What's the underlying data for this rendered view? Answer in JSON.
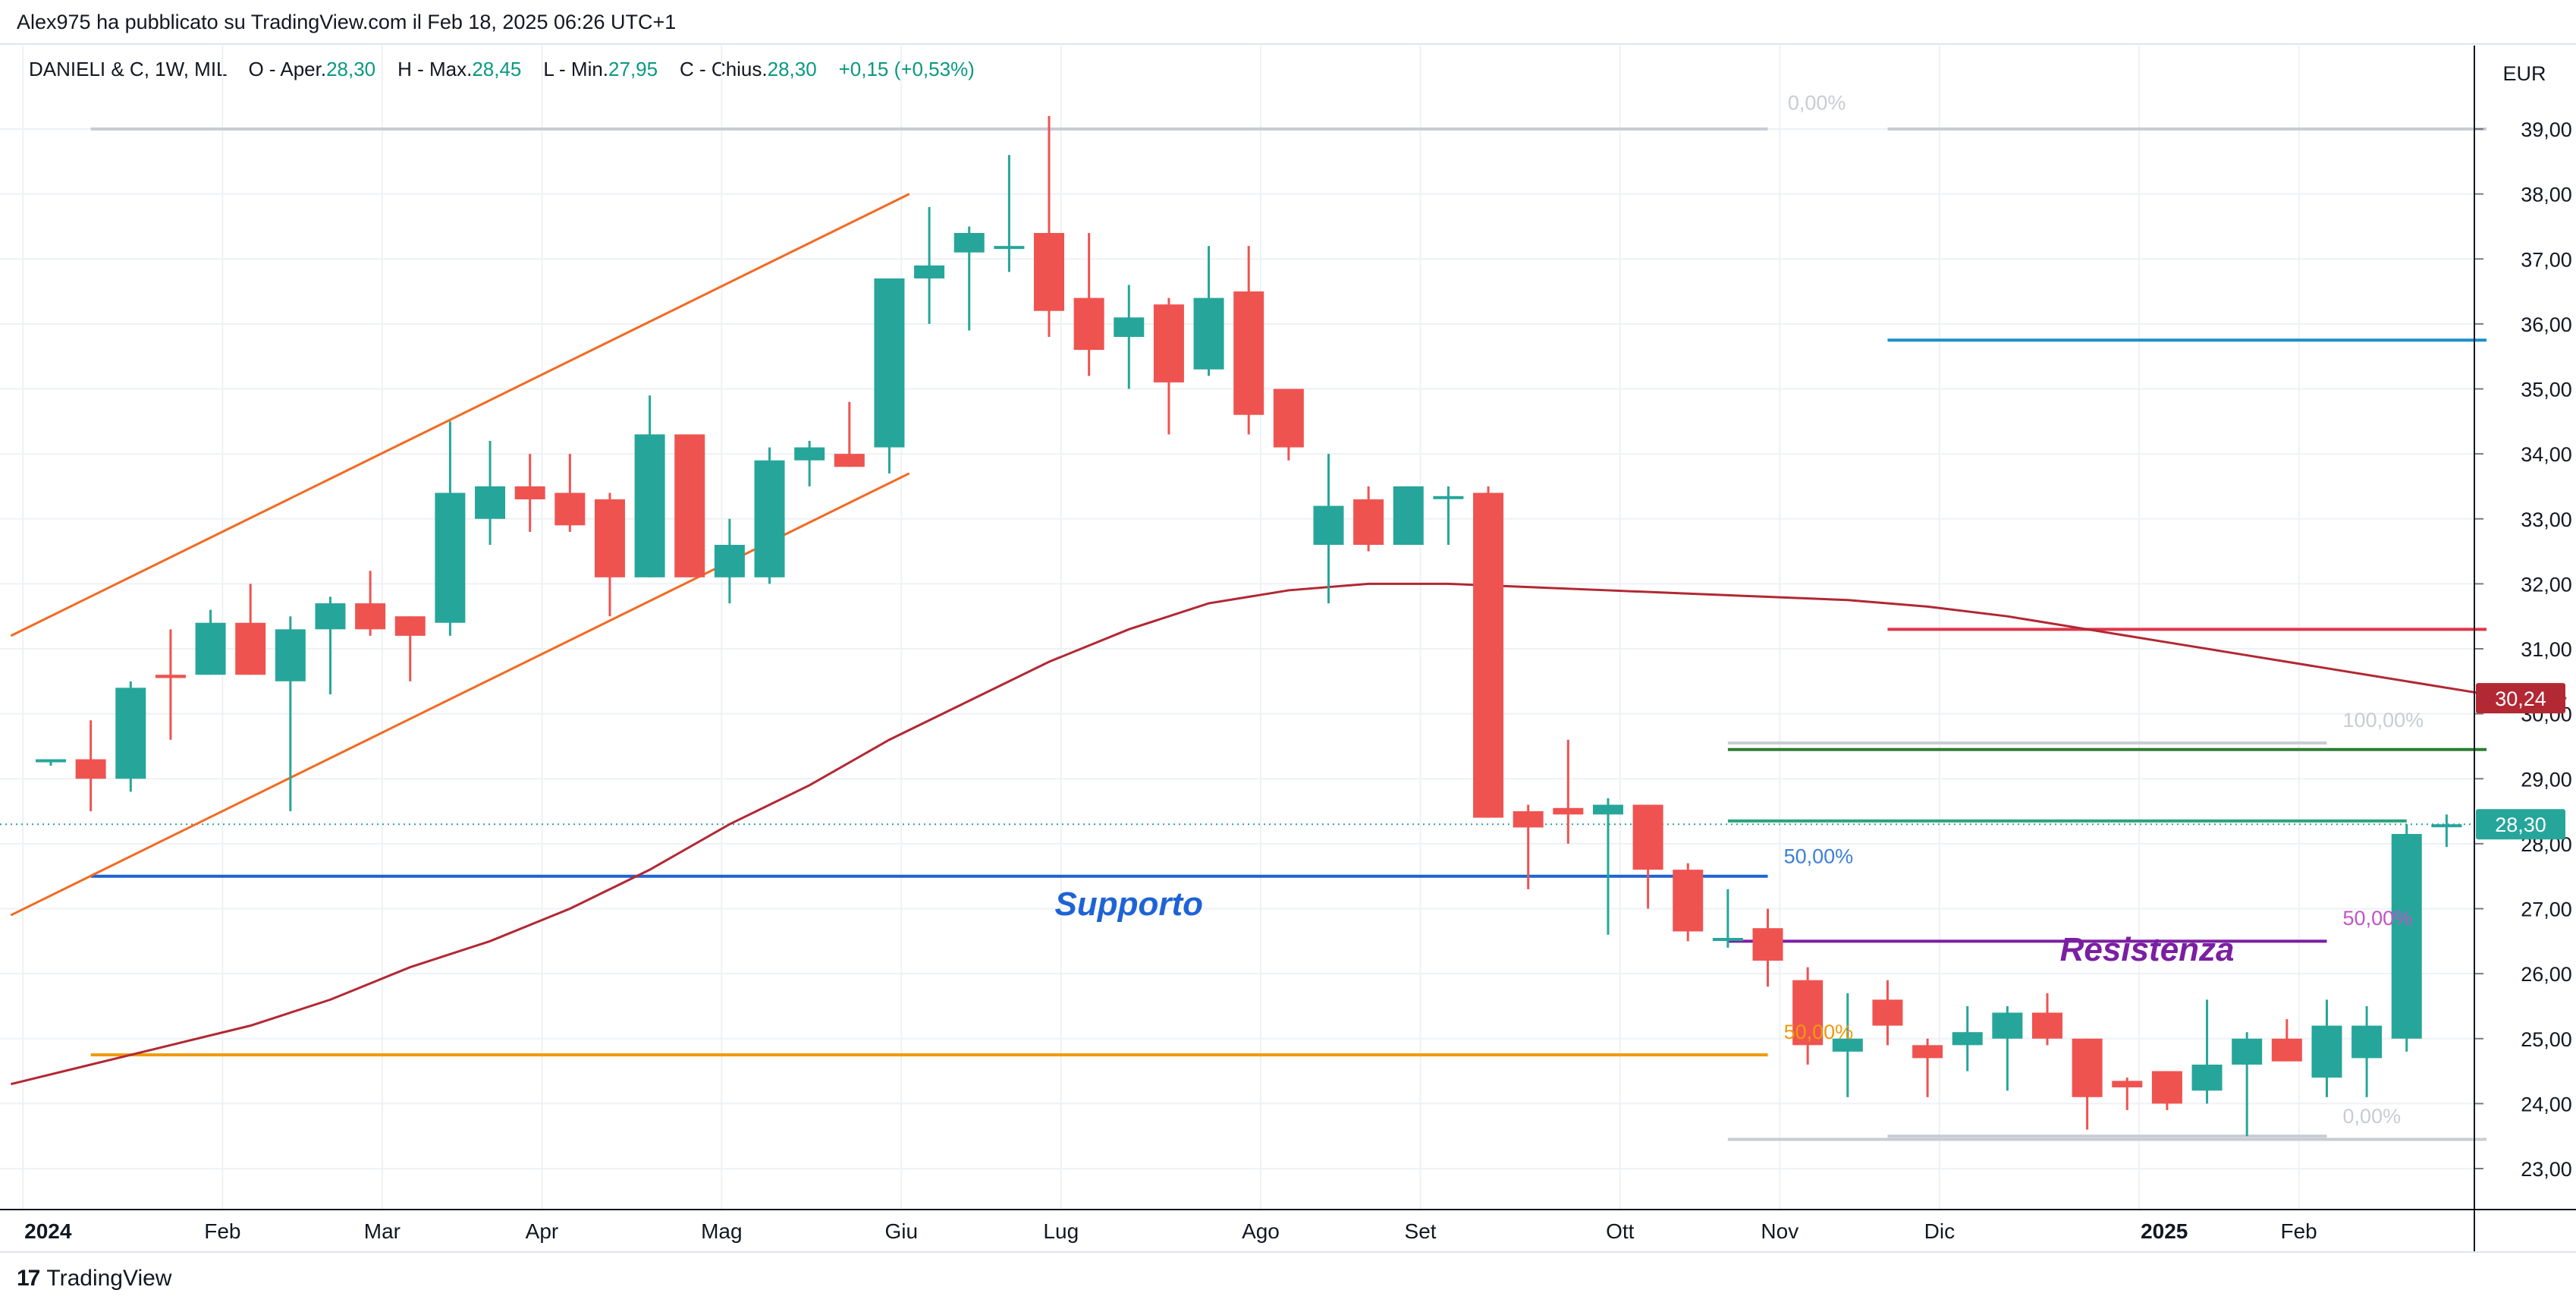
{
  "header": {
    "published_by": "Alex975 ha pubblicato su TradingView.com il Feb 18, 2025 06:26 UTC+1"
  },
  "legend": {
    "symbol": "DANIELI & C, 1W, MIL",
    "open_label": "O - Aper.",
    "open": "28,30",
    "high_label": "H - Max.",
    "high": "28,45",
    "low_label": "L - Min.",
    "low": "27,95",
    "close_label": "C - Chius.",
    "close": "28,30",
    "change": "+0,15 (+0,53%)"
  },
  "footer": {
    "logo": "17",
    "brand": "TradingView"
  },
  "colors": {
    "up": "#26a69a",
    "down": "#ef5350",
    "grid": "#eef1f5",
    "ma": "#b22833",
    "channel": "#f26a21",
    "support": "#1e63d6",
    "resistance": "#7b1fa2",
    "level_orange": "#ef9a0a",
    "level_blue": "#1a8fc9",
    "level_red": "#e0344a",
    "level_green": "#2e7d32",
    "level_teal": "#2ea37a",
    "fib_gray": "#c8ccd3"
  },
  "chart_data": {
    "type": "candlestick",
    "timeframe": "1W",
    "currency": "EUR",
    "ylim": [
      22.4,
      40.0
    ],
    "y_ticks": [
      "23,00",
      "24,00",
      "25,00",
      "26,00",
      "27,00",
      "28,00",
      "29,00",
      "30,00",
      "31,00",
      "32,00",
      "33,00",
      "34,00",
      "35,00",
      "36,00",
      "37,00",
      "38,00",
      "39,00"
    ],
    "x_labels": [
      {
        "label": "2024",
        "bold": true,
        "x": -0.7
      },
      {
        "label": "Feb",
        "bold": false,
        "x": 4.3
      },
      {
        "label": "Mar",
        "bold": false,
        "x": 8.3
      },
      {
        "label": "Apr",
        "bold": false,
        "x": 12.3
      },
      {
        "label": "Mag",
        "bold": false,
        "x": 16.8
      },
      {
        "label": "Giu",
        "bold": false,
        "x": 21.3
      },
      {
        "label": "Lug",
        "bold": false,
        "x": 25.3
      },
      {
        "label": "Ago",
        "bold": false,
        "x": 30.3
      },
      {
        "label": "Set",
        "bold": false,
        "x": 34.3
      },
      {
        "label": "Ott",
        "bold": false,
        "x": 39.3
      },
      {
        "label": "Nov",
        "bold": false,
        "x": 43.3
      },
      {
        "label": "Dic",
        "bold": false,
        "x": 47.3
      },
      {
        "label": "2025",
        "bold": true,
        "x": 52.3
      },
      {
        "label": "Feb",
        "bold": false,
        "x": 56.3
      }
    ],
    "candles": [
      {
        "o": 29.3,
        "h": 29.3,
        "l": 29.2,
        "c": 29.3
      },
      {
        "o": 29.3,
        "h": 29.9,
        "l": 28.5,
        "c": 29.0
      },
      {
        "o": 29.0,
        "h": 30.5,
        "l": 28.8,
        "c": 30.4
      },
      {
        "o": 30.6,
        "h": 31.3,
        "l": 29.6,
        "c": 30.55
      },
      {
        "o": 30.6,
        "h": 31.6,
        "l": 30.6,
        "c": 31.4
      },
      {
        "o": 31.4,
        "h": 32.0,
        "l": 30.6,
        "c": 30.6
      },
      {
        "o": 30.5,
        "h": 31.5,
        "l": 28.5,
        "c": 31.3
      },
      {
        "o": 31.3,
        "h": 31.8,
        "l": 30.3,
        "c": 31.7
      },
      {
        "o": 31.7,
        "h": 32.2,
        "l": 31.2,
        "c": 31.3
      },
      {
        "o": 31.5,
        "h": 31.5,
        "l": 30.5,
        "c": 31.2
      },
      {
        "o": 31.4,
        "h": 34.5,
        "l": 31.2,
        "c": 33.4
      },
      {
        "o": 33.0,
        "h": 34.2,
        "l": 32.6,
        "c": 33.5
      },
      {
        "o": 33.5,
        "h": 34.0,
        "l": 32.8,
        "c": 33.3
      },
      {
        "o": 33.4,
        "h": 34.0,
        "l": 32.8,
        "c": 32.9
      },
      {
        "o": 33.3,
        "h": 33.4,
        "l": 31.5,
        "c": 32.1
      },
      {
        "o": 32.1,
        "h": 34.9,
        "l": 32.1,
        "c": 34.3
      },
      {
        "o": 34.3,
        "h": 34.3,
        "l": 32.1,
        "c": 32.1
      },
      {
        "o": 32.1,
        "h": 33.0,
        "l": 31.7,
        "c": 32.6
      },
      {
        "o": 32.1,
        "h": 34.1,
        "l": 32.0,
        "c": 33.9
      },
      {
        "o": 33.9,
        "h": 34.2,
        "l": 33.5,
        "c": 34.1
      },
      {
        "o": 34.0,
        "h": 34.8,
        "l": 33.8,
        "c": 33.8
      },
      {
        "o": 34.1,
        "h": 36.7,
        "l": 33.7,
        "c": 36.7
      },
      {
        "o": 36.7,
        "h": 37.8,
        "l": 36.0,
        "c": 36.9
      },
      {
        "o": 37.1,
        "h": 37.5,
        "l": 35.9,
        "c": 37.4
      },
      {
        "o": 37.2,
        "h": 38.6,
        "l": 36.8,
        "c": 37.2
      },
      {
        "o": 37.4,
        "h": 39.2,
        "l": 35.8,
        "c": 36.2
      },
      {
        "o": 36.4,
        "h": 37.4,
        "l": 35.2,
        "c": 35.6
      },
      {
        "o": 35.8,
        "h": 36.6,
        "l": 35.0,
        "c": 36.1
      },
      {
        "o": 36.3,
        "h": 36.4,
        "l": 34.3,
        "c": 35.1
      },
      {
        "o": 35.3,
        "h": 37.2,
        "l": 35.2,
        "c": 36.4
      },
      {
        "o": 36.5,
        "h": 37.2,
        "l": 34.3,
        "c": 34.6
      },
      {
        "o": 35.0,
        "h": 35.0,
        "l": 33.9,
        "c": 34.1
      },
      {
        "o": 32.6,
        "h": 34.0,
        "l": 31.7,
        "c": 33.2
      },
      {
        "o": 33.3,
        "h": 33.5,
        "l": 32.5,
        "c": 32.6
      },
      {
        "o": 32.6,
        "h": 33.5,
        "l": 32.6,
        "c": 33.5
      },
      {
        "o": 33.35,
        "h": 33.5,
        "l": 32.6,
        "c": 33.35
      },
      {
        "o": 33.4,
        "h": 33.5,
        "l": 28.4,
        "c": 28.4
      },
      {
        "o": 28.5,
        "h": 28.6,
        "l": 27.3,
        "c": 28.25
      },
      {
        "o": 28.55,
        "h": 29.6,
        "l": 28.0,
        "c": 28.45
      },
      {
        "o": 28.45,
        "h": 28.7,
        "l": 26.6,
        "c": 28.6
      },
      {
        "o": 28.6,
        "h": 28.6,
        "l": 27.0,
        "c": 27.6
      },
      {
        "o": 27.6,
        "h": 27.7,
        "l": 26.5,
        "c": 26.65
      },
      {
        "o": 26.55,
        "h": 27.3,
        "l": 26.4,
        "c": 26.55
      },
      {
        "o": 26.7,
        "h": 27.0,
        "l": 25.8,
        "c": 26.2
      },
      {
        "o": 25.9,
        "h": 26.1,
        "l": 24.6,
        "c": 24.9
      },
      {
        "o": 24.8,
        "h": 25.7,
        "l": 24.1,
        "c": 25.0
      },
      {
        "o": 25.6,
        "h": 25.9,
        "l": 24.9,
        "c": 25.2
      },
      {
        "o": 24.9,
        "h": 25.0,
        "l": 24.1,
        "c": 24.7
      },
      {
        "o": 24.9,
        "h": 25.5,
        "l": 24.5,
        "c": 25.1
      },
      {
        "o": 25.0,
        "h": 25.5,
        "l": 24.2,
        "c": 25.4
      },
      {
        "o": 25.4,
        "h": 25.7,
        "l": 24.9,
        "c": 25.0
      },
      {
        "o": 25.0,
        "h": 25.0,
        "l": 23.6,
        "c": 24.1
      },
      {
        "o": 24.35,
        "h": 24.4,
        "l": 23.9,
        "c": 24.25
      },
      {
        "o": 24.5,
        "h": 24.5,
        "l": 23.9,
        "c": 24.0
      },
      {
        "o": 24.2,
        "h": 25.6,
        "l": 24.0,
        "c": 24.6
      },
      {
        "o": 24.6,
        "h": 25.1,
        "l": 23.5,
        "c": 25.0
      },
      {
        "o": 25.0,
        "h": 25.3,
        "l": 24.7,
        "c": 24.65
      },
      {
        "o": 24.4,
        "h": 25.6,
        "l": 24.1,
        "c": 25.2
      },
      {
        "o": 24.7,
        "h": 25.5,
        "l": 24.1,
        "c": 25.2
      },
      {
        "o": 25.0,
        "h": 28.3,
        "l": 24.8,
        "c": 28.15
      },
      {
        "o": 28.3,
        "h": 28.45,
        "l": 27.95,
        "c": 28.3
      }
    ],
    "moving_average": [
      [
        -1,
        24.3
      ],
      [
        1,
        24.6
      ],
      [
        3,
        24.9
      ],
      [
        5,
        25.2
      ],
      [
        7,
        25.6
      ],
      [
        9,
        26.1
      ],
      [
        11,
        26.5
      ],
      [
        13,
        27.0
      ],
      [
        15,
        27.6
      ],
      [
        17,
        28.3
      ],
      [
        19,
        28.9
      ],
      [
        21,
        29.6
      ],
      [
        23,
        30.2
      ],
      [
        25,
        30.8
      ],
      [
        27,
        31.3
      ],
      [
        29,
        31.7
      ],
      [
        31,
        31.9
      ],
      [
        33,
        32.0
      ],
      [
        35,
        32.0
      ],
      [
        37,
        31.95
      ],
      [
        39,
        31.9
      ],
      [
        41,
        31.85
      ],
      [
        43,
        31.8
      ],
      [
        45,
        31.75
      ],
      [
        47,
        31.65
      ],
      [
        49,
        31.5
      ],
      [
        51,
        31.3
      ],
      [
        53,
        31.1
      ],
      [
        55,
        30.9
      ],
      [
        57,
        30.7
      ],
      [
        59,
        30.5
      ],
      [
        61,
        30.3
      ],
      [
        63,
        30.24
      ]
    ],
    "ma_label": "30,24",
    "last_price_label": "28,30",
    "channel_lines": [
      {
        "x1": -1,
        "y1": 31.2,
        "x2": 21.5,
        "y2": 38.0
      },
      {
        "x1": -1,
        "y1": 26.9,
        "x2": 21.5,
        "y2": 33.7
      }
    ],
    "horizontal_levels": [
      {
        "name": "support",
        "y": 27.5,
        "x1": 1.0,
        "x2": 43.0,
        "color_key": "support",
        "label": "Supporto",
        "label_x": 27.0,
        "label_y": 26.9
      },
      {
        "name": "resistance",
        "y": 26.5,
        "x1": 42.0,
        "x2": 57.0,
        "color_key": "resistance",
        "label": "Resistenza",
        "label_x": 52.5,
        "label_y": 26.2
      },
      {
        "name": "level-orange",
        "y": 24.75,
        "x1": 1.0,
        "x2": 43.0,
        "color_key": "level_orange",
        "label": "",
        "label_x": 0,
        "label_y": 0
      },
      {
        "name": "level-blue",
        "y": 35.75,
        "x1": 46.0,
        "x2": 61.0,
        "color_key": "level_blue",
        "label": "",
        "label_x": 0,
        "label_y": 0
      },
      {
        "name": "level-red",
        "y": 31.3,
        "x1": 46.0,
        "x2": 61.0,
        "color_key": "level_red",
        "label": "",
        "label_x": 0,
        "label_y": 0
      },
      {
        "name": "level-green",
        "y": 29.45,
        "x1": 42.0,
        "x2": 61.0,
        "color_key": "level_green",
        "label": "",
        "label_x": 0,
        "label_y": 0
      },
      {
        "name": "level-teal",
        "y": 28.35,
        "x1": 42.0,
        "x2": 59.0,
        "color_key": "level_teal",
        "label": "",
        "label_x": 0,
        "label_y": 0
      },
      {
        "name": "fib-top-left",
        "y": 39.0,
        "x1": 1.0,
        "x2": 43.0,
        "color_key": "fib_gray",
        "label": "",
        "label_x": 0,
        "label_y": 0
      },
      {
        "name": "fib-top-right",
        "y": 39.0,
        "x1": 46.0,
        "x2": 61.0,
        "color_key": "fib_gray",
        "label": "",
        "label_x": 0,
        "label_y": 0
      },
      {
        "name": "fib-mid",
        "y": 29.55,
        "x1": 42.0,
        "x2": 57.0,
        "color_key": "fib_gray",
        "label": "",
        "label_x": 0,
        "label_y": 0
      },
      {
        "name": "fib-bottom-a",
        "y": 23.45,
        "x1": 42.0,
        "x2": 61.0,
        "color_key": "fib_gray",
        "label": "",
        "label_x": 0,
        "label_y": 0
      },
      {
        "name": "fib-bottom-b",
        "y": 23.5,
        "x1": 46.0,
        "x2": 57.0,
        "color_key": "fib_gray",
        "label": "",
        "label_x": 0,
        "label_y": 0
      }
    ],
    "fib_labels": [
      {
        "text": "0,00%",
        "x": 43.5,
        "y": 39.3,
        "color": "#c8ccd3"
      },
      {
        "text": "100,00%",
        "x": 57.4,
        "y": 29.8,
        "color": "#c8ccd3"
      },
      {
        "text": "50,00%",
        "x": 43.4,
        "y": 27.7,
        "color": "#3d7fd6"
      },
      {
        "text": "50,00%",
        "x": 57.4,
        "y": 26.75,
        "color": "#c054c8"
      },
      {
        "text": "50,00%",
        "x": 43.4,
        "y": 25.0,
        "color": "#ef9a0a"
      },
      {
        "text": "0,00%",
        "x": 57.4,
        "y": 23.7,
        "color": "#c8ccd3"
      }
    ]
  }
}
